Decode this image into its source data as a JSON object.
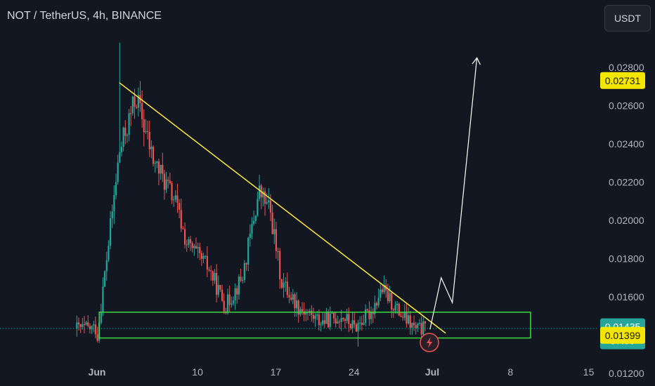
{
  "header": {
    "title": "NOT / TetherUS, 4h, BINANCE"
  },
  "toolbar": {
    "currency_label": "USDT"
  },
  "colors": {
    "background": "#131722",
    "up": "#26a69a",
    "down": "#ef5350",
    "trendline": "#ffeb3b",
    "zone": "#3ddc3d",
    "projection": "#ffffff",
    "badge_yellow": "#f5e600",
    "badge_green": "#26a69a"
  },
  "price_badges": {
    "upper_value": "0.02731",
    "last_price": "0.01435",
    "countdown": "57:00",
    "lower_value": "0.01399"
  },
  "icons": {
    "flash_marker": "lightning-icon"
  },
  "chart_data": {
    "type": "candlestick",
    "title": "NOT / TetherUS, 4h, BINANCE",
    "y_ticks": [
      "0.02800",
      "0.02600",
      "0.02400",
      "0.02200",
      "0.02000",
      "0.01800",
      "0.01600",
      "0.01200"
    ],
    "x_ticks": [
      "Jun",
      "10",
      "17",
      "24",
      "Jul",
      "8",
      "15"
    ],
    "ylim": [
      0.0119,
      0.0295
    ],
    "grid": false,
    "trend_points": [
      [
        0.0,
        0.0138
      ],
      [
        2.0,
        0.0235
      ],
      [
        3.5,
        0.0265
      ],
      [
        5.0,
        0.0232
      ],
      [
        7.0,
        0.021
      ],
      [
        8.0,
        0.0188
      ],
      [
        10.0,
        0.0175
      ],
      [
        11.5,
        0.0155
      ],
      [
        13.0,
        0.017
      ],
      [
        14.5,
        0.0215
      ],
      [
        15.5,
        0.0205
      ],
      [
        16.5,
        0.0168
      ],
      [
        18.0,
        0.0155
      ],
      [
        20.0,
        0.0147
      ],
      [
        22.0,
        0.015
      ],
      [
        23.0,
        0.0144
      ],
      [
        24.5,
        0.0152
      ],
      [
        25.5,
        0.0164
      ],
      [
        27.0,
        0.0152
      ],
      [
        28.5,
        0.0143
      ],
      [
        29.5,
        0.01435
      ]
    ],
    "drawings": {
      "resistance_trendline": {
        "start": [
          2.0,
          0.0272
        ],
        "end": [
          31.2,
          0.0141
        ]
      },
      "support_zone": {
        "x_range": [
          0.2,
          38.8
        ],
        "y_range": [
          0.01385,
          0.0152
        ]
      },
      "projection_path": [
        [
          29.8,
          0.0143
        ],
        [
          30.8,
          0.017
        ],
        [
          31.8,
          0.0157
        ],
        [
          34.0,
          0.0285
        ]
      ],
      "last_price_line": 0.01435
    }
  }
}
